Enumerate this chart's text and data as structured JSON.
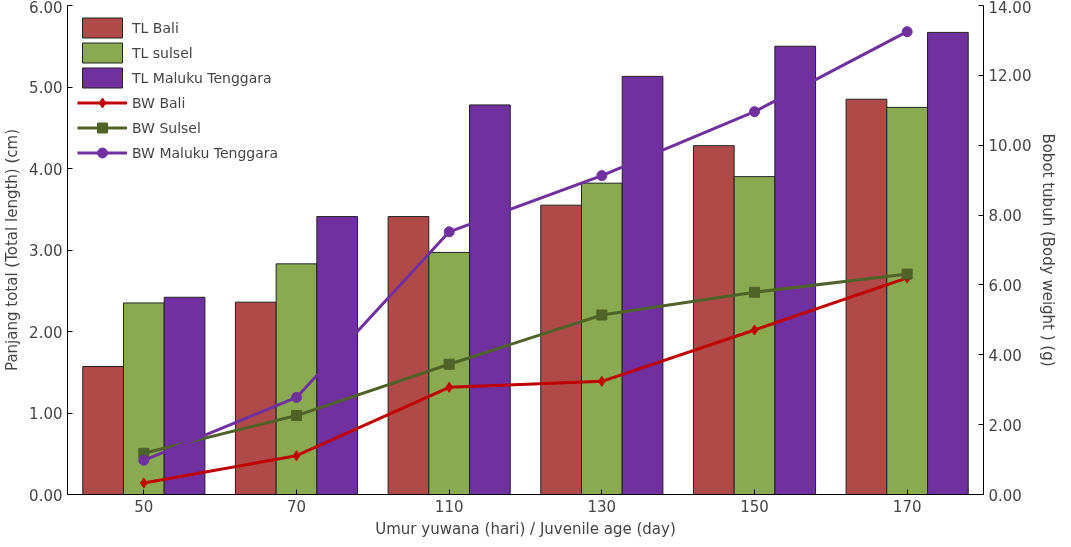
{
  "chart_data": {
    "type": "bar",
    "xlabel": "Umur yuwana (hari) / Juvenile age (day)",
    "ylabel": "Panjang total (Total length) (cm)",
    "y2label": "Bobot tubuh (Body weight ) (g)",
    "categories": [
      "50",
      "70",
      "110",
      "130",
      "150",
      "170"
    ],
    "ylim": [
      0,
      6
    ],
    "yticks": [
      {
        "value": 0,
        "label": "0.00"
      },
      {
        "value": 1,
        "label": "1.00"
      },
      {
        "value": 2,
        "label": "2.00"
      },
      {
        "value": 3,
        "label": "3.00"
      },
      {
        "value": 4,
        "label": "4.00"
      },
      {
        "value": 5,
        "label": "5.00"
      },
      {
        "value": 6,
        "label": "6.00"
      }
    ],
    "y2lim": [
      0,
      14
    ],
    "y2ticks": [
      {
        "value": 0,
        "label": "0.00"
      },
      {
        "value": 2,
        "label": "2.00"
      },
      {
        "value": 4,
        "label": "4.00"
      },
      {
        "value": 6,
        "label": "6.00"
      },
      {
        "value": 8,
        "label": "8.00"
      },
      {
        "value": 10,
        "label": "10.00"
      },
      {
        "value": 12,
        "label": "12.00"
      },
      {
        "value": 14,
        "label": "14.00"
      }
    ],
    "grid": false,
    "legend": "top left",
    "series": [
      {
        "name": "TL Bali",
        "color": "#b04a48",
        "values": [
          1.57,
          2.36,
          3.41,
          3.55,
          4.28,
          4.85
        ]
      },
      {
        "name": "TL sulsel",
        "color": "#8aaa52",
        "values": [
          2.35,
          2.83,
          2.97,
          3.82,
          3.9,
          4.75
        ]
      },
      {
        "name": "TL Maluku Tenggara",
        "color": "#7030a0",
        "values": [
          2.42,
          3.41,
          4.78,
          5.13,
          5.5,
          5.67
        ]
      },
      {
        "name": "BW Bali",
        "type": "line",
        "axis": "y2",
        "marker": "diamond",
        "color": "#c00000",
        "values": [
          0.33,
          1.11,
          3.07,
          3.24,
          4.71,
          6.2
        ]
      },
      {
        "name": "BW Sulsel",
        "type": "line",
        "axis": "y2",
        "marker": "square",
        "color": "#4f6228",
        "values": [
          1.18,
          2.26,
          3.73,
          5.14,
          5.79,
          6.31
        ]
      },
      {
        "name": "BW Maluku Tenggara",
        "type": "line",
        "axis": "y2",
        "marker": "circle",
        "color": "#7030a0",
        "values": [
          0.98,
          2.78,
          7.52,
          9.13,
          10.96,
          13.25
        ]
      }
    ]
  }
}
